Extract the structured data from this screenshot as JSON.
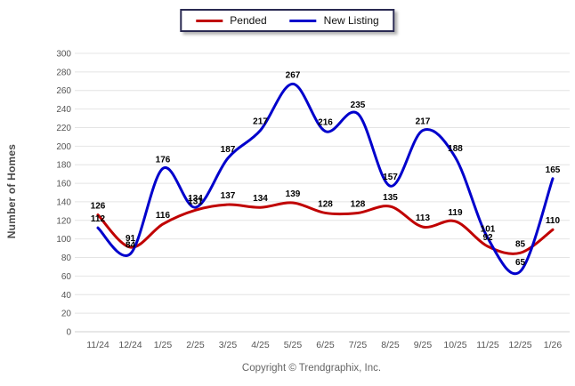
{
  "legend": {
    "items": [
      {
        "label": "Pended",
        "color": "#C00000"
      },
      {
        "label": "New Listing",
        "color": "#0000CC"
      }
    ]
  },
  "chart_data": {
    "type": "line",
    "title": "",
    "xlabel": "",
    "ylabel": "Number of Homes",
    "ylim": [
      0,
      300
    ],
    "ytick_step": 20,
    "grid": true,
    "legend_position": "top-center",
    "categories": [
      "11/24",
      "12/24",
      "1/25",
      "2/25",
      "3/25",
      "4/25",
      "5/25",
      "6/25",
      "7/25",
      "8/25",
      "9/25",
      "10/25",
      "11/25",
      "12/25",
      "1/26"
    ],
    "series": [
      {
        "name": "Pended",
        "color": "#C00000",
        "values": [
          126,
          91,
          116,
          131,
          137,
          134,
          139,
          128,
          128,
          135,
          113,
          119,
          92,
          85,
          110
        ]
      },
      {
        "name": "New Listing",
        "color": "#0000CC",
        "values": [
          112,
          84,
          176,
          134,
          187,
          217,
          267,
          216,
          235,
          157,
          217,
          188,
          101,
          65,
          165
        ]
      }
    ],
    "grid_color": "#E4E4E4",
    "label_color": "#000000",
    "footer": "Copyright © Trendgraphix, Inc."
  }
}
